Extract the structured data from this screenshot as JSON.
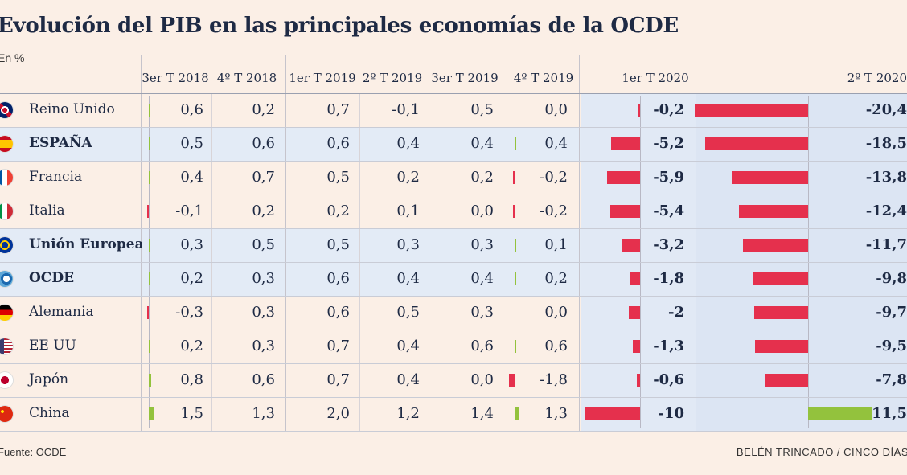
{
  "title": "Evolución del PIB en las principales economías de la OCDE",
  "subtitle": "En %",
  "source": "Fuente: OCDE",
  "credit": "BELÉN TRINCADO / CINCO DÍAS",
  "colors": {
    "negative": "#e5304d",
    "positive": "#93c23d",
    "highlight": "#e1e9f5",
    "text": "#1e2a44"
  },
  "chart_data": {
    "type": "table",
    "columns": [
      "3er T 2018",
      "4º T 2018",
      "1er T 2019",
      "2º T 2019",
      "3er T 2019",
      "4º T 2019",
      "1er T 2020",
      "2º T 2020"
    ],
    "rows": [
      {
        "name": "Reino Unido",
        "flag": "uk-flag-icon",
        "bold": false,
        "values": [
          "0,6",
          "0,2",
          "0,7",
          "-0,1",
          "0,5",
          "0,0",
          "-0,2",
          "-20,4"
        ]
      },
      {
        "name": "ESPAÑA",
        "flag": "spain-flag-icon",
        "bold": true,
        "values": [
          "0,5",
          "0,6",
          "0,6",
          "0,4",
          "0,4",
          "0,4",
          "-5,2",
          "-18,5"
        ]
      },
      {
        "name": "Francia",
        "flag": "france-flag-icon",
        "bold": false,
        "values": [
          "0,4",
          "0,7",
          "0,5",
          "0,2",
          "0,2",
          "-0,2",
          "-5,9",
          "-13,8"
        ]
      },
      {
        "name": "Italia",
        "flag": "italy-flag-icon",
        "bold": false,
        "values": [
          "-0,1",
          "0,2",
          "0,2",
          "0,1",
          "0,0",
          "-0,2",
          "-5,4",
          "-12,4"
        ]
      },
      {
        "name": "Unión Europea",
        "flag": "eu-flag-icon",
        "bold": true,
        "values": [
          "0,3",
          "0,5",
          "0,5",
          "0,3",
          "0,3",
          "0,1",
          "-3,2",
          "-11,7"
        ]
      },
      {
        "name": "OCDE",
        "flag": "oecd-logo-icon",
        "bold": true,
        "values": [
          "0,2",
          "0,3",
          "0,6",
          "0,4",
          "0,4",
          "0,2",
          "-1,8",
          "-9,8"
        ]
      },
      {
        "name": "Alemania",
        "flag": "germany-flag-icon",
        "bold": false,
        "values": [
          "-0,3",
          "0,3",
          "0,6",
          "0,5",
          "0,3",
          "0,0",
          "-2",
          "-9,7"
        ]
      },
      {
        "name": "EE UU",
        "flag": "usa-flag-icon",
        "bold": false,
        "values": [
          "0,2",
          "0,3",
          "0,7",
          "0,4",
          "0,6",
          "0,6",
          "-1,3",
          "-9,5"
        ]
      },
      {
        "name": "Japón",
        "flag": "japan-flag-icon",
        "bold": false,
        "values": [
          "0,8",
          "0,6",
          "0,7",
          "0,4",
          "0,0",
          "-1,8",
          "-0,6",
          "-7,8"
        ]
      },
      {
        "name": "China",
        "flag": "china-flag-icon",
        "bold": false,
        "values": [
          "1,5",
          "1,3",
          "2,0",
          "1,2",
          "1,4",
          "1,3",
          "-10",
          "11,5"
        ]
      }
    ],
    "bar_columns": [
      0,
      5,
      6,
      7
    ]
  }
}
